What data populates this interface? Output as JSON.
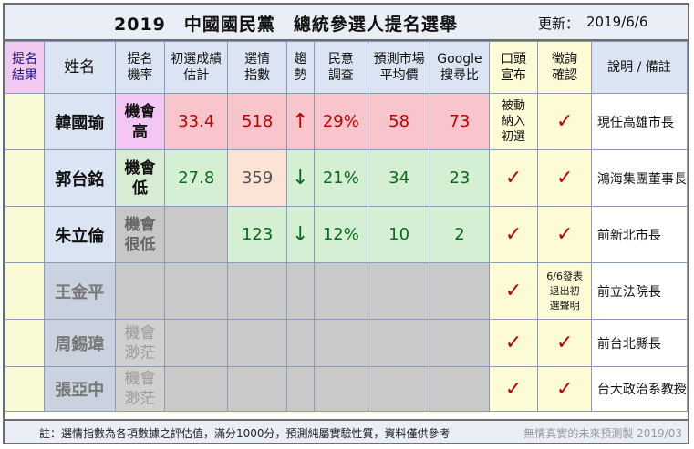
{
  "header": {
    "title": "2019　中國國民黨　總統參選人提名選舉",
    "updated_label": "更新：",
    "updated_value": "2019/6/6"
  },
  "columns": {
    "result": "提名\n結果",
    "name": "姓名",
    "prob": "提名\n機率",
    "estimate": "初選成績\n估計",
    "index": "選情\n指數",
    "trend": "趨\n勢",
    "poll": "民意\n調查",
    "market": "預測市場\n平均價",
    "google": "Google\n搜尋比",
    "oral": "口頭\n宣布",
    "confirm": "徵詢\n確認",
    "remark": "說明 / 備註"
  },
  "rows": [
    {
      "name": "韓國瑜",
      "prob": "機會\n高",
      "estimate": "33.4",
      "index": "518",
      "trend": "↑",
      "poll": "29%",
      "market": "58",
      "google": "73",
      "oral": "被動\n納入\n初選",
      "confirm": "✓",
      "remark": "現任高雄市長"
    },
    {
      "name": "郭台銘",
      "prob": "機會\n低",
      "estimate": "27.8",
      "index": "359",
      "trend": "↓",
      "poll": "21%",
      "market": "34",
      "google": "23",
      "oral": "✓",
      "confirm": "✓",
      "remark": "鴻海集團董事長"
    },
    {
      "name": "朱立倫",
      "prob": "機會\n很低",
      "estimate": "",
      "index": "123",
      "trend": "↓",
      "poll": "12%",
      "market": "10",
      "google": "2",
      "oral": "✓",
      "confirm": "✓",
      "remark": "前新北市長"
    },
    {
      "name": "王金平",
      "prob": "",
      "estimate": "",
      "index": "",
      "trend": "",
      "poll": "",
      "market": "",
      "google": "",
      "oral": "✓",
      "confirm": "6/6發表\n退出初\n選聲明",
      "remark": "前立法院長"
    },
    {
      "name": "周錫瑋",
      "prob": "機會\n渺茫",
      "estimate": "",
      "index": "",
      "trend": "",
      "poll": "",
      "market": "",
      "google": "",
      "oral": "✓",
      "confirm": "✓",
      "remark": "前台北縣長"
    },
    {
      "name": "張亞中",
      "prob": "機會\n渺茫",
      "estimate": "",
      "index": "",
      "trend": "",
      "poll": "",
      "market": "",
      "google": "",
      "oral": "✓",
      "confirm": "✓",
      "remark": "台大政治系教授"
    }
  ],
  "footer": {
    "note": "註：選情指數為各項數據之評估值，滿分1000分，預測純屬實驗性質，資料僅供參考",
    "credit": "無情真實的未來預測製 2019/03"
  },
  "colors": {
    "pink_cell": "#f9c5cc",
    "green_cell": "#d4efd4",
    "up_arrow": "#c00000",
    "down_arrow": "#0a6b1a",
    "check": "#c00000"
  }
}
